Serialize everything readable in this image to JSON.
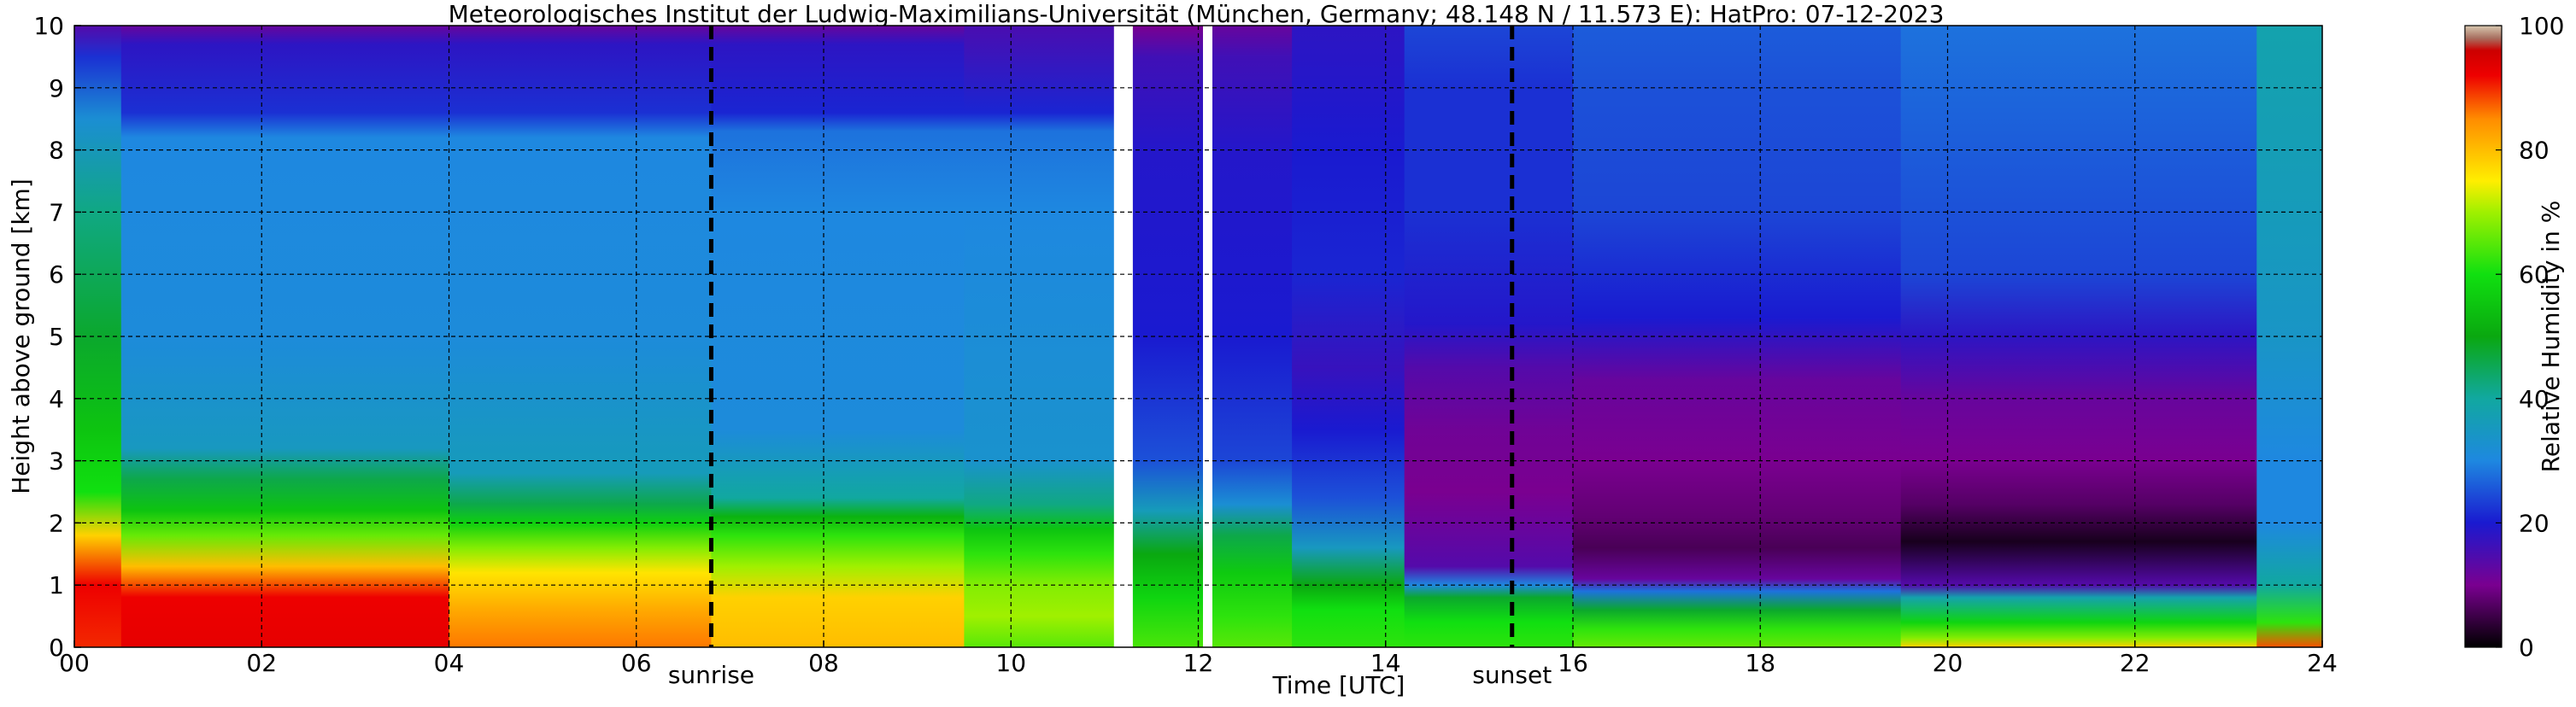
{
  "chart_data": {
    "type": "heatmap",
    "title": "Meteorologisches Institut der Ludwig-Maximilians-Universität (München, Germany; 48.148 N / 11.573 E):    HatPro: 07-12-2023",
    "xlabel": "Time [UTC]",
    "ylabel": "Height above ground [km]",
    "xlim": [
      0,
      24
    ],
    "ylim": [
      0,
      10
    ],
    "x_ticks": [
      0,
      2,
      4,
      6,
      8,
      10,
      12,
      14,
      16,
      18,
      20,
      22,
      24
    ],
    "x_tick_labels": [
      "00",
      "02",
      "04",
      "06",
      "08",
      "10",
      "12",
      "14",
      "16",
      "18",
      "20",
      "22",
      "24"
    ],
    "y_ticks": [
      0,
      1,
      2,
      3,
      4,
      5,
      6,
      7,
      8,
      9,
      10
    ],
    "y_tick_labels": [
      "0",
      "1",
      "2",
      "3",
      "4",
      "5",
      "6",
      "7",
      "8",
      "9",
      "10"
    ],
    "grid": true,
    "colorbar": {
      "label": "Relative Humidity in %",
      "range": [
        0,
        100
      ],
      "ticks": [
        0,
        20,
        40,
        60,
        80,
        100
      ],
      "tick_labels": [
        "0",
        "20",
        "40",
        "60",
        "80",
        "100"
      ],
      "colormap": [
        {
          "value": 0,
          "color": "#000000"
        },
        {
          "value": 10,
          "color": "#7a0090"
        },
        {
          "value": 20,
          "color": "#1a1ad0"
        },
        {
          "value": 30,
          "color": "#1e88e0"
        },
        {
          "value": 40,
          "color": "#11a8a0"
        },
        {
          "value": 50,
          "color": "#0aa810"
        },
        {
          "value": 60,
          "color": "#10e010"
        },
        {
          "value": 70,
          "color": "#a0f000"
        },
        {
          "value": 75,
          "color": "#ffee00"
        },
        {
          "value": 85,
          "color": "#ff8c00"
        },
        {
          "value": 92,
          "color": "#ee0000"
        },
        {
          "value": 96,
          "color": "#cc0000"
        },
        {
          "value": 98,
          "color": "#a87060"
        },
        {
          "value": 100,
          "color": "#d8c8b0"
        }
      ]
    },
    "annotations": [
      {
        "text": "sunrise",
        "x": 6.8
      },
      {
        "text": "sunset",
        "x": 15.35
      }
    ],
    "data_gaps": [
      [
        11.1,
        11.3
      ],
      [
        12.05,
        12.15
      ]
    ],
    "rh_profiles": [
      {
        "t_start": 0.0,
        "t_end": 0.5,
        "points": [
          [
            0,
            90
          ],
          [
            1,
            92
          ],
          [
            1.8,
            78
          ],
          [
            2.5,
            60
          ],
          [
            3.5,
            55
          ],
          [
            5,
            48
          ],
          [
            7,
            42
          ],
          [
            8.5,
            32
          ],
          [
            9.5,
            22
          ],
          [
            10,
            14
          ]
        ]
      },
      {
        "t_start": 0.5,
        "t_end": 4.0,
        "points": [
          [
            0,
            93
          ],
          [
            0.8,
            92
          ],
          [
            1.3,
            80
          ],
          [
            1.8,
            66
          ],
          [
            2.2,
            55
          ],
          [
            2.7,
            46
          ],
          [
            3.2,
            35
          ],
          [
            5,
            31
          ],
          [
            8.2,
            30
          ],
          [
            8.6,
            22
          ],
          [
            9.7,
            18
          ],
          [
            10,
            12
          ]
        ]
      },
      {
        "t_start": 4.0,
        "t_end": 6.8,
        "points": [
          [
            0,
            86
          ],
          [
            0.6,
            82
          ],
          [
            1.2,
            76
          ],
          [
            1.6,
            68
          ],
          [
            2.0,
            57
          ],
          [
            2.3,
            46
          ],
          [
            2.8,
            36
          ],
          [
            5,
            31
          ],
          [
            8.2,
            30
          ],
          [
            8.6,
            22
          ],
          [
            9.7,
            18
          ],
          [
            10,
            12
          ]
        ]
      },
      {
        "t_start": 6.8,
        "t_end": 9.5,
        "points": [
          [
            0,
            80
          ],
          [
            0.8,
            78
          ],
          [
            1.3,
            70
          ],
          [
            1.8,
            62
          ],
          [
            2.1,
            52
          ],
          [
            2.4,
            40
          ],
          [
            3.5,
            31
          ],
          [
            7,
            30
          ],
          [
            8.3,
            28
          ],
          [
            8.6,
            21
          ],
          [
            9.7,
            18
          ],
          [
            10,
            12
          ]
        ]
      },
      {
        "t_start": 9.5,
        "t_end": 11.1,
        "points": [
          [
            0,
            65
          ],
          [
            0.5,
            70
          ],
          [
            1.0,
            68
          ],
          [
            1.5,
            62
          ],
          [
            1.9,
            55
          ],
          [
            2.3,
            42
          ],
          [
            3.0,
            33
          ],
          [
            7,
            30
          ],
          [
            8.3,
            28
          ],
          [
            8.6,
            21
          ],
          [
            10,
            15
          ]
        ]
      },
      {
        "t_start": 11.3,
        "t_end": 12.05,
        "points": [
          [
            0,
            64
          ],
          [
            0.8,
            58
          ],
          [
            1.5,
            50
          ],
          [
            2.2,
            36
          ],
          [
            3.0,
            25
          ],
          [
            5,
            20
          ],
          [
            8,
            19
          ],
          [
            9.5,
            16
          ],
          [
            10,
            10
          ]
        ]
      },
      {
        "t_start": 12.15,
        "t_end": 13.0,
        "points": [
          [
            0,
            65
          ],
          [
            0.5,
            62
          ],
          [
            1.2,
            56
          ],
          [
            1.8,
            46
          ],
          [
            2.3,
            32
          ],
          [
            3.0,
            24
          ],
          [
            5,
            20
          ],
          [
            8,
            19
          ],
          [
            9.5,
            16
          ],
          [
            10,
            12
          ]
        ]
      },
      {
        "t_start": 13.0,
        "t_end": 14.2,
        "points": [
          [
            0,
            62
          ],
          [
            0.6,
            60
          ],
          [
            1.0,
            50
          ],
          [
            1.6,
            35
          ],
          [
            2.4,
            25
          ],
          [
            3.5,
            20
          ],
          [
            4.5,
            17
          ],
          [
            6,
            21
          ],
          [
            8,
            20
          ],
          [
            10,
            18
          ]
        ]
      },
      {
        "t_start": 14.2,
        "t_end": 16.0,
        "points": [
          [
            0,
            62
          ],
          [
            0.4,
            60
          ],
          [
            0.8,
            48
          ],
          [
            1.0,
            30
          ],
          [
            1.3,
            14
          ],
          [
            2.5,
            10
          ],
          [
            3.5,
            11
          ],
          [
            4.5,
            14
          ],
          [
            5.2,
            19
          ],
          [
            7,
            22
          ],
          [
            9,
            22
          ],
          [
            10,
            24
          ]
        ]
      },
      {
        "t_start": 16.0,
        "t_end": 19.5,
        "points": [
          [
            0,
            66
          ],
          [
            0.3,
            62
          ],
          [
            0.6,
            48
          ],
          [
            0.9,
            28
          ],
          [
            1.1,
            12
          ],
          [
            1.6,
            6
          ],
          [
            2.1,
            8
          ],
          [
            3,
            10
          ],
          [
            4.3,
            12
          ],
          [
            5.3,
            20
          ],
          [
            7,
            24
          ],
          [
            9,
            25
          ],
          [
            10,
            26
          ]
        ]
      },
      {
        "t_start": 19.5,
        "t_end": 23.3,
        "points": [
          [
            0,
            78
          ],
          [
            0.15,
            68
          ],
          [
            0.4,
            58
          ],
          [
            0.8,
            38
          ],
          [
            1.0,
            14
          ],
          [
            1.7,
            2
          ],
          [
            2.3,
            7
          ],
          [
            3,
            10
          ],
          [
            4,
            12
          ],
          [
            5,
            18
          ],
          [
            6,
            24
          ],
          [
            8,
            26
          ],
          [
            10,
            28
          ]
        ]
      },
      {
        "t_start": 23.3,
        "t_end": 24.0,
        "points": [
          [
            0,
            88
          ],
          [
            0.4,
            62
          ],
          [
            1.0,
            40
          ],
          [
            2.0,
            30
          ],
          [
            3.0,
            30
          ],
          [
            5,
            34
          ],
          [
            7,
            36
          ],
          [
            10,
            38
          ]
        ]
      }
    ]
  }
}
